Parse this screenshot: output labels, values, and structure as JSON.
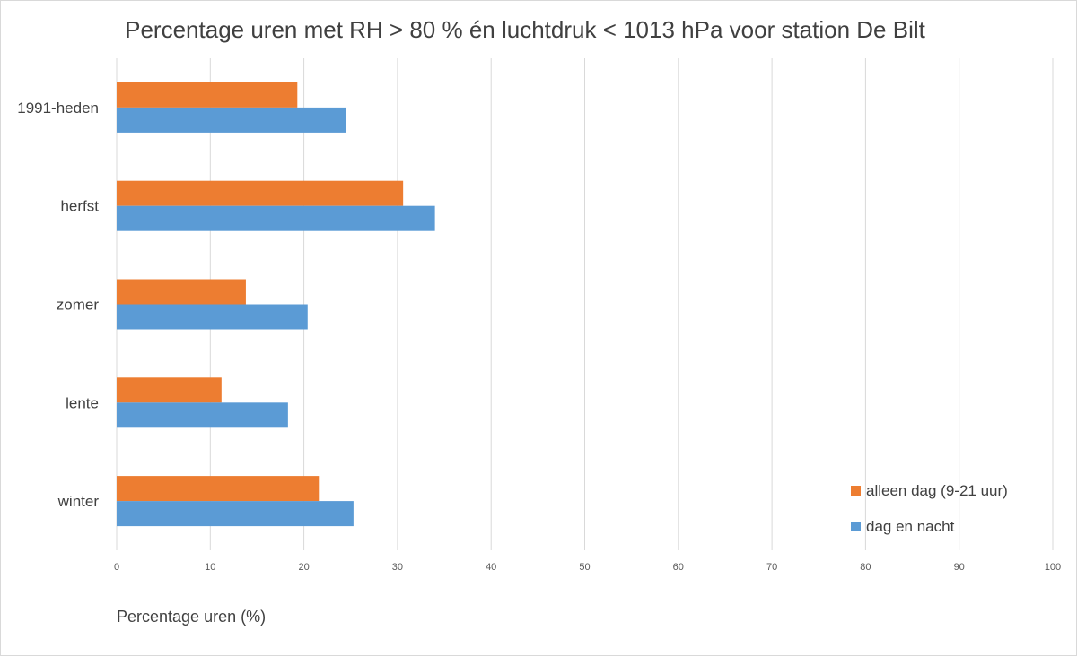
{
  "chart_data": {
    "type": "bar",
    "orientation": "horizontal",
    "title": "Percentage uren met RH > 80 % én luchtdruk < 1013 hPa voor station De Bilt",
    "xlabel": "Percentage uren (%)",
    "ylabel": "",
    "xlim": [
      0,
      100
    ],
    "x_ticks": [
      0,
      10,
      20,
      30,
      40,
      50,
      60,
      70,
      80,
      90,
      100
    ],
    "grid": true,
    "legend_position": "bottom-right",
    "categories": [
      "1991-heden",
      "herfst",
      "zomer",
      "lente",
      "winter"
    ],
    "series": [
      {
        "name": "alleen dag (9-21 uur)",
        "color": "#ed7d31",
        "values": [
          19.3,
          30.6,
          13.8,
          11.2,
          21.6
        ]
      },
      {
        "name": "dag en nacht",
        "color": "#5b9bd5",
        "values": [
          24.5,
          34.0,
          20.4,
          18.3,
          25.3
        ]
      }
    ]
  }
}
